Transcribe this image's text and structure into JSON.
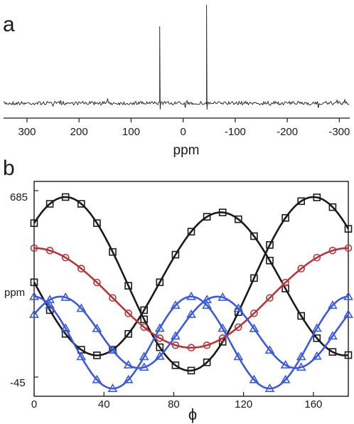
{
  "panel_labels": {
    "a": "a",
    "b": "b"
  },
  "colors": {
    "black": "#1a1a1a",
    "red": "#b0393c",
    "blue": "#3d5bd6"
  },
  "chart_data": [
    {
      "type": "line",
      "panel": "a",
      "xlabel": "ppm",
      "ylabel": "",
      "x_reversed": true,
      "xlim": [
        345,
        -320
      ],
      "xticks": [
        300,
        200,
        100,
        0,
        -100,
        -200,
        -300
      ],
      "xtick_labels": [
        "300",
        "200",
        "100",
        "0",
        "-100",
        "-200",
        "-300"
      ],
      "peaks": [
        {
          "x": 45,
          "height": 1.0
        },
        {
          "x": -45,
          "height": 1.28
        }
      ]
    },
    {
      "type": "line",
      "panel": "b",
      "xlabel": "ϕ",
      "ylabel": "ppm",
      "xlim": [
        0,
        180
      ],
      "ylim": [
        -45,
        685
      ],
      "xticks": [
        0,
        40,
        80,
        120,
        160
      ],
      "xtick_labels": [
        "0",
        "40",
        "80",
        "120",
        "160"
      ],
      "ytick_labels": [
        "685",
        "-45"
      ],
      "series": [
        {
          "color": "black",
          "marker": "square",
          "mean": 320,
          "amp": 340,
          "period": 142,
          "phase": 18
        },
        {
          "color": "black",
          "marker": "square",
          "mean": 320,
          "amp": 280,
          "period": 142,
          "phase": -35
        },
        {
          "color": "red",
          "marker": "circle",
          "mean": 265,
          "amp": 195,
          "period": 180,
          "phase": 0
        },
        {
          "color": "blue",
          "marker": "triangle",
          "mean": 130,
          "amp": 140,
          "period": 90,
          "phase": 15
        },
        {
          "color": "blue",
          "marker": "triangle",
          "mean": 90,
          "amp": 180,
          "period": 90,
          "phase": 0
        }
      ]
    }
  ]
}
